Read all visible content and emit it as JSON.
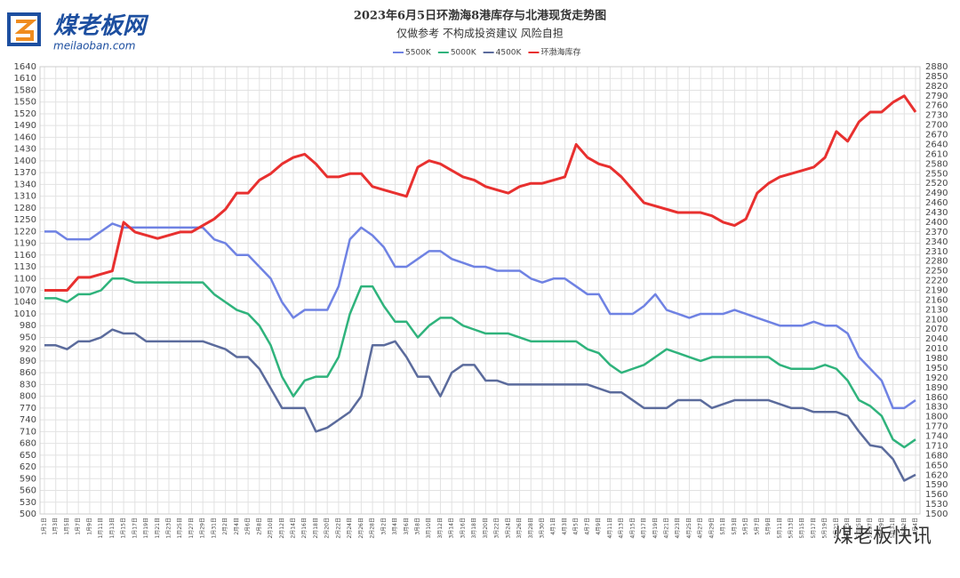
{
  "header": {
    "logo": "煤老板网",
    "site": "meilaoban.com",
    "watermark": "煤老板快讯"
  },
  "chart_data": {
    "type": "line",
    "title": "2023年6月5日环渤海8港库存与北港现货走势图",
    "subtitle": "仅做参考 不构成投资建议 风险自担",
    "categories": [
      "1月1日",
      "1月3日",
      "1月5日",
      "1月7日",
      "1月9日",
      "1月11日",
      "1月13日",
      "1月15日",
      "1月17日",
      "1月19日",
      "1月21日",
      "1月23日",
      "1月25日",
      "1月27日",
      "1月29日",
      "1月31日",
      "2月2日",
      "2月4日",
      "2月6日",
      "2月8日",
      "2月10日",
      "2月12日",
      "2月14日",
      "2月16日",
      "2月18日",
      "2月20日",
      "2月22日",
      "2月24日",
      "2月26日",
      "2月28日",
      "3月2日",
      "3月4日",
      "3月6日",
      "3月8日",
      "3月10日",
      "3月12日",
      "3月14日",
      "3月16日",
      "3月18日",
      "3月20日",
      "3月22日",
      "3月24日",
      "3月26日",
      "3月28日",
      "3月30日",
      "4月1日",
      "4月3日",
      "4月5日",
      "4月7日",
      "4月9日",
      "4月11日",
      "4月13日",
      "4月15日",
      "4月17日",
      "4月19日",
      "4月21日",
      "4月23日",
      "4月25日",
      "4月27日",
      "4月29日",
      "5月1日",
      "5月3日",
      "5月5日",
      "5月7日",
      "5月9日",
      "5月11日",
      "5月13日",
      "5月15日",
      "5月17日",
      "5月19日",
      "5月21日",
      "5月23日",
      "5月25日",
      "5月27日",
      "5月29日",
      "5月31日",
      "6月2日",
      "6月4日"
    ],
    "series": [
      {
        "name": "5500K",
        "color": "#6f82e3",
        "values": [
          1220,
          1220,
          1200,
          1200,
          1200,
          1220,
          1240,
          1230,
          1230,
          1230,
          1230,
          1230,
          1230,
          1230,
          1230,
          1200,
          1190,
          1160,
          1160,
          1130,
          1100,
          1040,
          1000,
          1020,
          1020,
          1020,
          1080,
          1200,
          1230,
          1210,
          1180,
          1130,
          1130,
          1150,
          1170,
          1170,
          1150,
          1140,
          1130,
          1130,
          1120,
          1120,
          1120,
          1100,
          1090,
          1100,
          1100,
          1080,
          1060,
          1060,
          1010,
          1010,
          1010,
          1030,
          1060,
          1020,
          1010,
          1000,
          1010,
          1010,
          1010,
          1020,
          1010,
          1000,
          990,
          980,
          980,
          980,
          990,
          980,
          980,
          960,
          900,
          870,
          840,
          770,
          770,
          790
        ]
      },
      {
        "name": "5000K",
        "color": "#2fb37c",
        "values": [
          1050,
          1050,
          1040,
          1060,
          1060,
          1070,
          1100,
          1100,
          1090,
          1090,
          1090,
          1090,
          1090,
          1090,
          1090,
          1060,
          1040,
          1020,
          1010,
          980,
          930,
          850,
          800,
          840,
          850,
          850,
          900,
          1010,
          1080,
          1080,
          1030,
          990,
          990,
          950,
          980,
          1000,
          1000,
          980,
          970,
          960,
          960,
          960,
          950,
          940,
          940,
          940,
          940,
          940,
          920,
          910,
          880,
          860,
          870,
          880,
          900,
          920,
          910,
          900,
          890,
          900,
          900,
          900,
          900,
          900,
          900,
          880,
          870,
          870,
          870,
          880,
          870,
          840,
          790,
          775,
          750,
          690,
          670,
          690
        ]
      },
      {
        "name": "4500K",
        "color": "#5b6b9c",
        "values": [
          930,
          930,
          920,
          940,
          940,
          950,
          970,
          960,
          960,
          940,
          940,
          940,
          940,
          940,
          940,
          930,
          920,
          900,
          900,
          870,
          820,
          770,
          770,
          770,
          710,
          720,
          740,
          760,
          800,
          930,
          930,
          940,
          900,
          850,
          850,
          800,
          860,
          880,
          880,
          840,
          840,
          830,
          830,
          830,
          830,
          830,
          830,
          830,
          830,
          820,
          810,
          810,
          790,
          770,
          770,
          770,
          790,
          790,
          790,
          770,
          780,
          790,
          790,
          790,
          790,
          780,
          770,
          770,
          760,
          760,
          760,
          750,
          710,
          675,
          670,
          640,
          585,
          600
        ]
      },
      {
        "name": "环渤海库存",
        "color": "#e8302f",
        "axis": "y2",
        "values": [
          2190,
          2190,
          2190,
          2230,
          2230,
          2240,
          2250,
          2400,
          2370,
          2360,
          2350,
          2360,
          2370,
          2370,
          2390,
          2410,
          2440,
          2490,
          2490,
          2530,
          2550,
          2580,
          2600,
          2610,
          2580,
          2540,
          2540,
          2550,
          2550,
          2510,
          2500,
          2490,
          2480,
          2570,
          2590,
          2580,
          2560,
          2540,
          2530,
          2510,
          2500,
          2490,
          2510,
          2520,
          2520,
          2530,
          2540,
          2640,
          2600,
          2580,
          2570,
          2540,
          2500,
          2460,
          2450,
          2440,
          2430,
          2430,
          2430,
          2420,
          2400,
          2390,
          2410,
          2490,
          2520,
          2540,
          2550,
          2560,
          2570,
          2600,
          2680,
          2650,
          2710,
          2740,
          2740,
          2770,
          2790,
          2740
        ]
      }
    ],
    "ylim": [
      500,
      1640
    ],
    "yticks": [
      500,
      530,
      560,
      590,
      620,
      650,
      680,
      710,
      740,
      770,
      800,
      830,
      860,
      890,
      920,
      950,
      980,
      1010,
      1040,
      1070,
      1100,
      1130,
      1160,
      1190,
      1220,
      1250,
      1280,
      1310,
      1340,
      1370,
      1400,
      1430,
      1460,
      1490,
      1520,
      1550,
      1580,
      1610,
      1640
    ],
    "y2lim": [
      1500,
      2880
    ],
    "y2ticks": [
      1500,
      1530,
      1560,
      1590,
      1620,
      1650,
      1680,
      1710,
      1740,
      1770,
      1800,
      1830,
      1860,
      1890,
      1920,
      1950,
      1980,
      2010,
      2040,
      2070,
      2100,
      2130,
      2160,
      2190,
      2220,
      2250,
      2280,
      2310,
      2340,
      2370,
      2400,
      2430,
      2460,
      2490,
      2520,
      2550,
      2580,
      2610,
      2640,
      2670,
      2700,
      2730,
      2760,
      2790,
      2820,
      2850,
      2880
    ],
    "grid": true,
    "legend": "top"
  }
}
